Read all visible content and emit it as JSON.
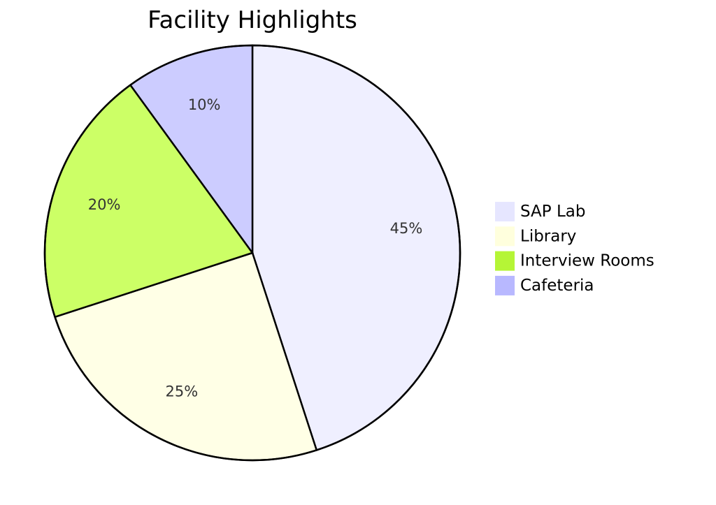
{
  "chart_data": {
    "type": "pie",
    "title": "Facility Highlights",
    "legend_position": "right",
    "slices": [
      {
        "label": "SAP Lab",
        "value": 45,
        "display": "45%",
        "color": "#efefff"
      },
      {
        "label": "Library",
        "value": 25,
        "display": "25%",
        "color": "#ffffe6"
      },
      {
        "label": "Interview Rooms",
        "value": 20,
        "display": "20%",
        "color": "#ccff66"
      },
      {
        "label": "Cafeteria",
        "value": 10,
        "display": "10%",
        "color": "#ccccff"
      }
    ],
    "legend_colors": [
      "#e6e6ff",
      "#ffffdd",
      "#b5f536",
      "#b8b8ff"
    ]
  }
}
